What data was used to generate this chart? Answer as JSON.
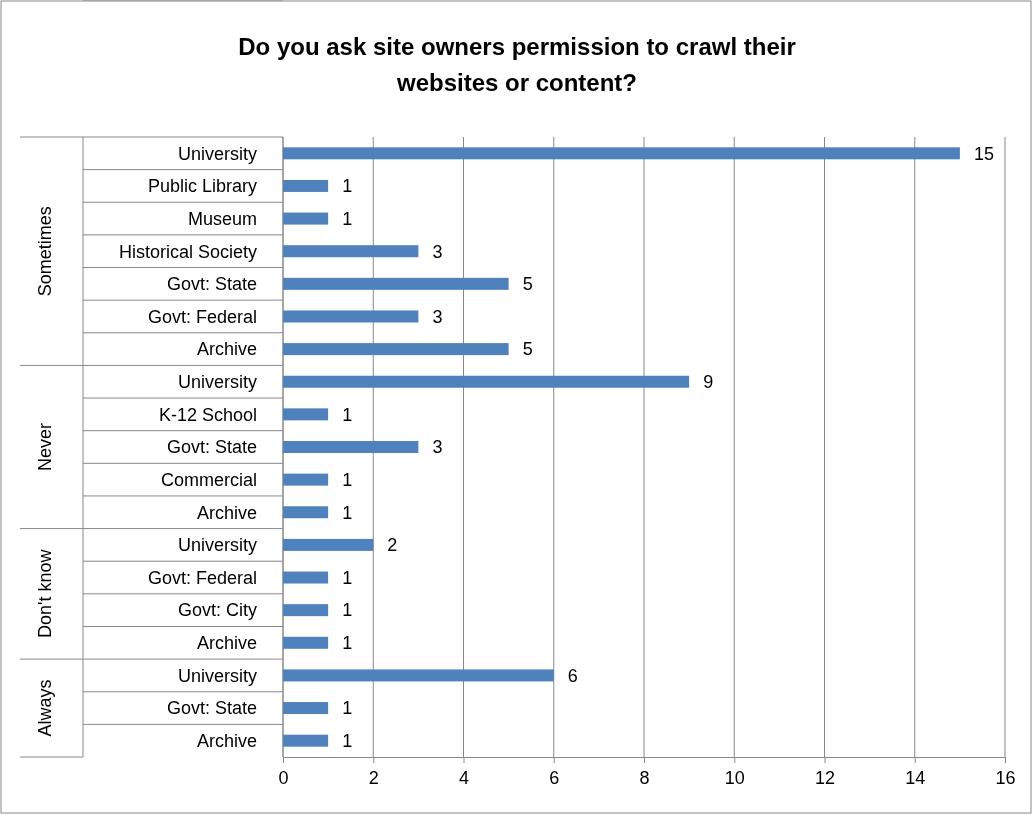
{
  "chart_data": {
    "type": "bar",
    "orientation": "horizontal",
    "stacked": true,
    "title": "Do you ask site owners permission to crawl their websites or content?",
    "categories": [
      "University",
      "Public Library",
      "Museum",
      "Historical Society",
      "Govt: State",
      "Govt: Federal",
      "Archive",
      "University",
      "K-12 School",
      "Govt: State",
      "Commercial",
      "Archive",
      "University",
      "Govt: Federal",
      "Govt: City",
      "Archive",
      "University",
      "Govt: State",
      "Archive"
    ],
    "series": [
      {
        "color": "#4f81bd",
        "values": [
          15,
          1,
          1,
          3,
          5,
          3,
          5,
          null,
          null,
          null,
          null,
          null,
          null,
          null,
          null,
          null,
          null,
          null,
          null
        ]
      },
      {
        "color": "#4f81bd",
        "values": [
          null,
          null,
          null,
          null,
          null,
          null,
          null,
          9,
          1,
          3,
          1,
          1,
          null,
          null,
          null,
          null,
          null,
          null,
          null
        ]
      },
      {
        "color": "#4f81bd",
        "values": [
          null,
          null,
          null,
          null,
          null,
          null,
          null,
          null,
          null,
          null,
          null,
          null,
          2,
          1,
          1,
          1,
          null,
          null,
          null
        ]
      },
      {
        "color": "#4f81bd",
        "values": [
          null,
          null,
          null,
          null,
          null,
          null,
          null,
          null,
          null,
          null,
          null,
          null,
          null,
          null,
          null,
          null,
          6,
          1,
          1
        ]
      }
    ],
    "annotations": [
      "Sometimes",
      "Never",
      "Don't know",
      "Always"
    ],
    "xlim": [
      0,
      16
    ],
    "xticks": [
      0,
      2,
      4,
      6,
      8,
      10,
      12,
      14,
      16
    ],
    "grid": "x",
    "data_labels": true,
    "legend": false
  }
}
